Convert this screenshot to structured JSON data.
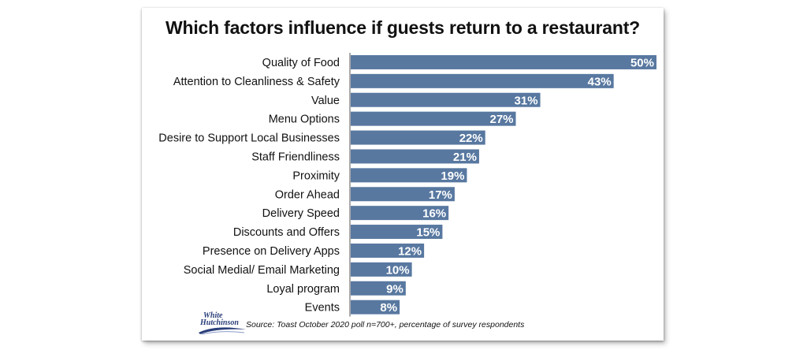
{
  "chart_data": {
    "type": "bar",
    "orientation": "horizontal",
    "title": "Which factors influence if guests return to a restaurant?",
    "categories": [
      "Quality of Food",
      "Attention to Cleanliness & Safety",
      "Value",
      "Menu Options",
      "Desire to Support Local Businesses",
      "Staff Friendliness",
      "Proximity",
      "Order Ahead",
      "Delivery Speed",
      "Discounts and Offers",
      "Presence on Delivery Apps",
      "Social Medial/ Email Marketing",
      "Loyal program",
      "Events"
    ],
    "values": [
      50,
      43,
      31,
      27,
      22,
      21,
      19,
      17,
      16,
      15,
      12,
      10,
      9,
      8
    ],
    "value_labels": [
      "50%",
      "43%",
      "31%",
      "27%",
      "22%",
      "21%",
      "19%",
      "17%",
      "16%",
      "15%",
      "12%",
      "10%",
      "9%",
      "8%"
    ],
    "xlim": [
      0,
      50
    ],
    "grid": false,
    "bar_color": "#5878a0",
    "source": "Source: Toast October 2020 poll n=700+, percentage of survey respondents"
  },
  "logo": {
    "line1": "White",
    "line2": "Hutchinson",
    "color": "#2a3e7a"
  }
}
